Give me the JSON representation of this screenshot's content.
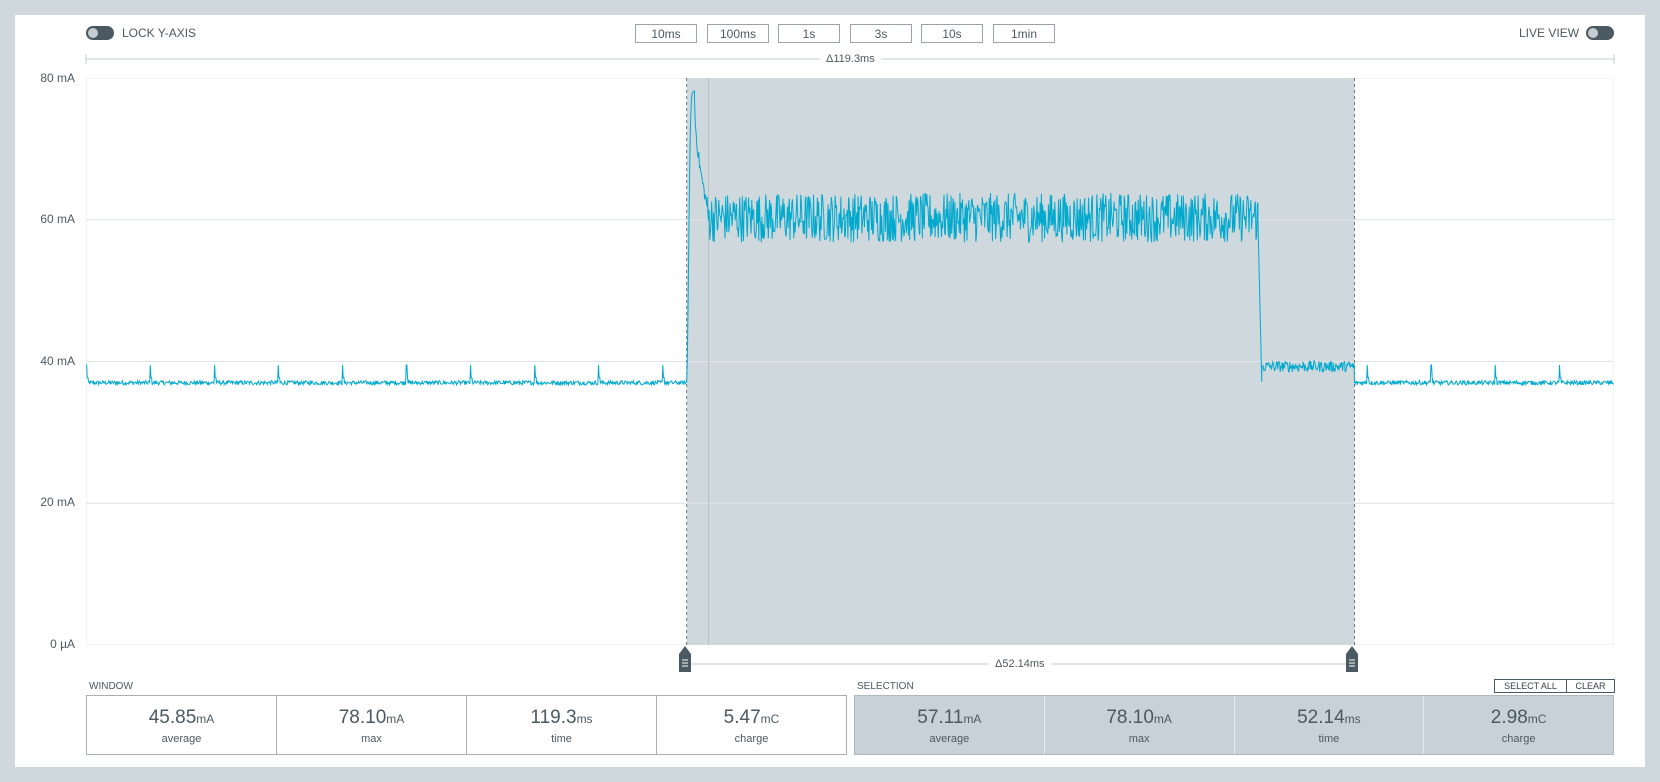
{
  "toolbar": {
    "lock_y_axis_label": "LOCK Y-AXIS",
    "live_view_label": "LIVE VIEW",
    "timeframes": [
      "10ms",
      "100ms",
      "1s",
      "3s",
      "10s",
      "1min"
    ]
  },
  "chart": {
    "window_delta": "Δ119.3ms",
    "selection_delta": "Δ52.14ms",
    "y_ticks": [
      "80 mA",
      "60 mA",
      "40 mA",
      "20 mA",
      "0 µA"
    ]
  },
  "chart_data": {
    "type": "line",
    "ylim": [
      0,
      80
    ],
    "y_unit": "mA",
    "xlim_ms": [
      0,
      119.3
    ],
    "selection_ms": [
      46.9,
      99.04
    ],
    "grid": true,
    "series": [
      {
        "color": "#00a9ce",
        "segments": [
          {
            "t_start": 0,
            "t_end": 46.9,
            "baseline": 37,
            "noise": 0.3,
            "spike_every_ms": 5,
            "spike_height": 2.5
          },
          {
            "t_start": 46.9,
            "t_end": 47.5,
            "rise_to": 78.1
          },
          {
            "t_start": 47.5,
            "t_end": 48.5,
            "decay_to": 62
          },
          {
            "t_start": 48.5,
            "t_end": 91.5,
            "baseline": 60.3,
            "noise": 3.5
          },
          {
            "t_start": 91.5,
            "t_end": 91.8,
            "drop_to": 37
          },
          {
            "t_start": 91.8,
            "t_end": 99.04,
            "baseline": 39.3,
            "noise": 0.8
          },
          {
            "t_start": 99.04,
            "t_end": 119.3,
            "baseline": 37,
            "noise": 0.3,
            "spike_every_ms": 5,
            "spike_height": 2.5
          }
        ]
      }
    ]
  },
  "window_stats": {
    "label": "WINDOW",
    "average": {
      "value": "45.85",
      "unit": "mA",
      "label": "average"
    },
    "max": {
      "value": "78.10",
      "unit": "mA",
      "label": "max"
    },
    "time": {
      "value": "119.3",
      "unit": "ms",
      "label": "time"
    },
    "charge": {
      "value": "5.47",
      "unit": "mC",
      "label": "charge"
    }
  },
  "selection_stats": {
    "label": "SELECTION",
    "select_all_label": "SELECT ALL",
    "clear_label": "CLEAR",
    "average": {
      "value": "57.11",
      "unit": "mA",
      "label": "average"
    },
    "max": {
      "value": "78.10",
      "unit": "mA",
      "label": "max"
    },
    "time": {
      "value": "52.14",
      "unit": "ms",
      "label": "time"
    },
    "charge": {
      "value": "2.98",
      "unit": "mC",
      "label": "charge"
    }
  },
  "colors": {
    "trace": "#00a9ce",
    "selection_fill": "#cfd8dd",
    "background": "#cfd8dd",
    "accent_dark": "#4b5962"
  }
}
